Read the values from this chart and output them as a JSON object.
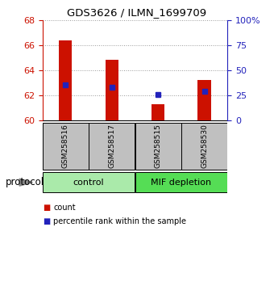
{
  "title": "GDS3626 / ILMN_1699709",
  "samples": [
    "GSM258516",
    "GSM258517",
    "GSM258515",
    "GSM258530"
  ],
  "groups": [
    {
      "name": "control",
      "indices": [
        0,
        1
      ],
      "color": "#aaeaaa"
    },
    {
      "name": "MIF depletion",
      "indices": [
        2,
        3
      ],
      "color": "#55dd55"
    }
  ],
  "bar_bottom": 60,
  "bar_tops": [
    66.4,
    64.8,
    61.3,
    63.2
  ],
  "percentile_values": [
    62.8,
    62.6,
    62.05,
    62.3
  ],
  "left_ylim": [
    60,
    68
  ],
  "left_yticks": [
    60,
    62,
    64,
    66,
    68
  ],
  "right_ylim": [
    0,
    100
  ],
  "right_yticks": [
    0,
    25,
    50,
    75,
    100
  ],
  "right_yticklabels": [
    "0",
    "25",
    "50",
    "75",
    "100%"
  ],
  "bar_color": "#cc1100",
  "blue_color": "#2222bb",
  "grid_color": "#999999",
  "tick_box_color": "#c0c0c0",
  "protocol_label": "protocol",
  "legend_count_label": "count",
  "legend_pct_label": "percentile rank within the sample"
}
